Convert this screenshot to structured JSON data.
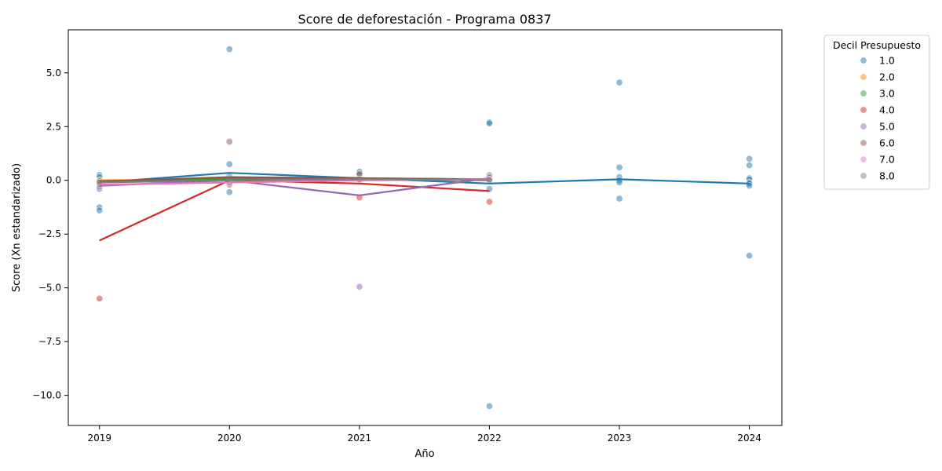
{
  "chart_data": {
    "type": "scatter",
    "title": "Score de deforestación - Programa 0837",
    "xlabel": "Año",
    "ylabel": "Score (Xn estandarizado)",
    "xlim": [
      2018.76,
      2024.25
    ],
    "ylim": [
      -11.4,
      7.0
    ],
    "x_ticks": [
      2019,
      2020,
      2021,
      2022,
      2023,
      2024
    ],
    "y_ticks": [
      5.0,
      2.5,
      0.0,
      -2.5,
      -5.0,
      -7.5,
      -10.0
    ],
    "y_tick_labels": [
      "5.0",
      "2.5",
      "0.0",
      "−2.5",
      "−5.0",
      "−7.5",
      "−10.0"
    ],
    "grid": false,
    "legend": {
      "title": "Decil Presupuesto",
      "placement": "outside-right"
    },
    "series": [
      {
        "name": "1.0",
        "color": "#1f77b4",
        "points": [
          [
            2019,
            0.25
          ],
          [
            2019,
            0.15
          ],
          [
            2019,
            -0.05
          ],
          [
            2019,
            -0.15
          ],
          [
            2019,
            -0.4
          ],
          [
            2019,
            -1.25
          ],
          [
            2019,
            -1.4
          ],
          [
            2020,
            6.1
          ],
          [
            2020,
            0.75
          ],
          [
            2020,
            0.2
          ],
          [
            2020,
            0.05
          ],
          [
            2020,
            -0.55
          ],
          [
            2021,
            0.4
          ],
          [
            2021,
            0.25
          ],
          [
            2021,
            0.1
          ],
          [
            2022,
            2.7
          ],
          [
            2022,
            2.65
          ],
          [
            2022,
            0.1
          ],
          [
            2022,
            -0.4
          ],
          [
            2022,
            -10.5
          ],
          [
            2023,
            4.55
          ],
          [
            2023,
            0.6
          ],
          [
            2023,
            0.15
          ],
          [
            2023,
            0.0
          ],
          [
            2023,
            -0.1
          ],
          [
            2023,
            -0.85
          ],
          [
            2024,
            1.0
          ],
          [
            2024,
            0.7
          ],
          [
            2024,
            0.1
          ],
          [
            2024,
            0.05
          ],
          [
            2024,
            -0.1
          ],
          [
            2024,
            -0.15
          ],
          [
            2024,
            -0.25
          ],
          [
            2024,
            -3.5
          ]
        ],
        "trend": [
          [
            2019,
            -0.1
          ],
          [
            2020,
            0.35
          ],
          [
            2021,
            0.1
          ],
          [
            2022,
            -0.15
          ],
          [
            2023,
            0.05
          ],
          [
            2024,
            -0.15
          ]
        ]
      },
      {
        "name": "2.0",
        "color": "#ff7f0e",
        "points": [
          [
            2019,
            0.0
          ],
          [
            2020,
            0.05
          ],
          [
            2021,
            0.05
          ],
          [
            2022,
            0.05
          ]
        ],
        "trend": [
          [
            2019,
            0.0
          ],
          [
            2020,
            0.05
          ],
          [
            2021,
            0.05
          ],
          [
            2022,
            0.05
          ]
        ]
      },
      {
        "name": "3.0",
        "color": "#2ca02c",
        "points": [
          [
            2019,
            0.0
          ],
          [
            2020,
            0.1
          ],
          [
            2021,
            0.1
          ],
          [
            2022,
            0.05
          ]
        ],
        "trend": [
          [
            2019,
            -0.05
          ],
          [
            2020,
            0.08
          ],
          [
            2021,
            0.1
          ],
          [
            2022,
            0.05
          ]
        ]
      },
      {
        "name": "4.0",
        "color": "#d62728",
        "points": [
          [
            2019,
            -5.5
          ],
          [
            2020,
            0.05
          ],
          [
            2021,
            -0.8
          ],
          [
            2022,
            -1.0
          ]
        ],
        "trend": [
          [
            2019,
            -2.8
          ],
          [
            2020,
            0.0
          ],
          [
            2021,
            -0.15
          ],
          [
            2022,
            -0.5
          ]
        ]
      },
      {
        "name": "5.0",
        "color": "#9467bd",
        "points": [
          [
            2019,
            -0.3
          ],
          [
            2020,
            -0.1
          ],
          [
            2021,
            -4.95
          ],
          [
            2022,
            0.25
          ],
          [
            2022,
            0.1
          ]
        ],
        "trend": [
          [
            2019,
            -0.25
          ],
          [
            2020,
            0.0
          ],
          [
            2021,
            -0.7
          ],
          [
            2022,
            0.1
          ]
        ]
      },
      {
        "name": "6.0",
        "color": "#8c564b",
        "points": [
          [
            2019,
            -0.05
          ],
          [
            2020,
            1.8
          ],
          [
            2020,
            -0.2
          ],
          [
            2021,
            0.3
          ],
          [
            2022,
            0.15
          ]
        ],
        "trend": [
          [
            2019,
            -0.05
          ],
          [
            2020,
            0.15
          ],
          [
            2021,
            0.1
          ],
          [
            2022,
            0.05
          ]
        ]
      },
      {
        "name": "7.0",
        "color": "#e377c2",
        "points": [
          [
            2019,
            -0.2
          ],
          [
            2020,
            -0.1
          ],
          [
            2021,
            0.0
          ],
          [
            2022,
            0.05
          ]
        ],
        "trend": [
          [
            2019,
            -0.2
          ],
          [
            2020,
            -0.1
          ],
          [
            2021,
            0.0
          ],
          [
            2022,
            0.05
          ]
        ]
      },
      {
        "name": "8.0",
        "color": "#7f7f7f",
        "points": [
          [
            2019,
            -0.1
          ],
          [
            2020,
            0.0
          ],
          [
            2021,
            0.05
          ],
          [
            2022,
            0.0
          ]
        ],
        "trend": [
          [
            2019,
            -0.1
          ],
          [
            2020,
            0.0
          ],
          [
            2021,
            0.05
          ],
          [
            2022,
            0.0
          ]
        ]
      }
    ]
  }
}
